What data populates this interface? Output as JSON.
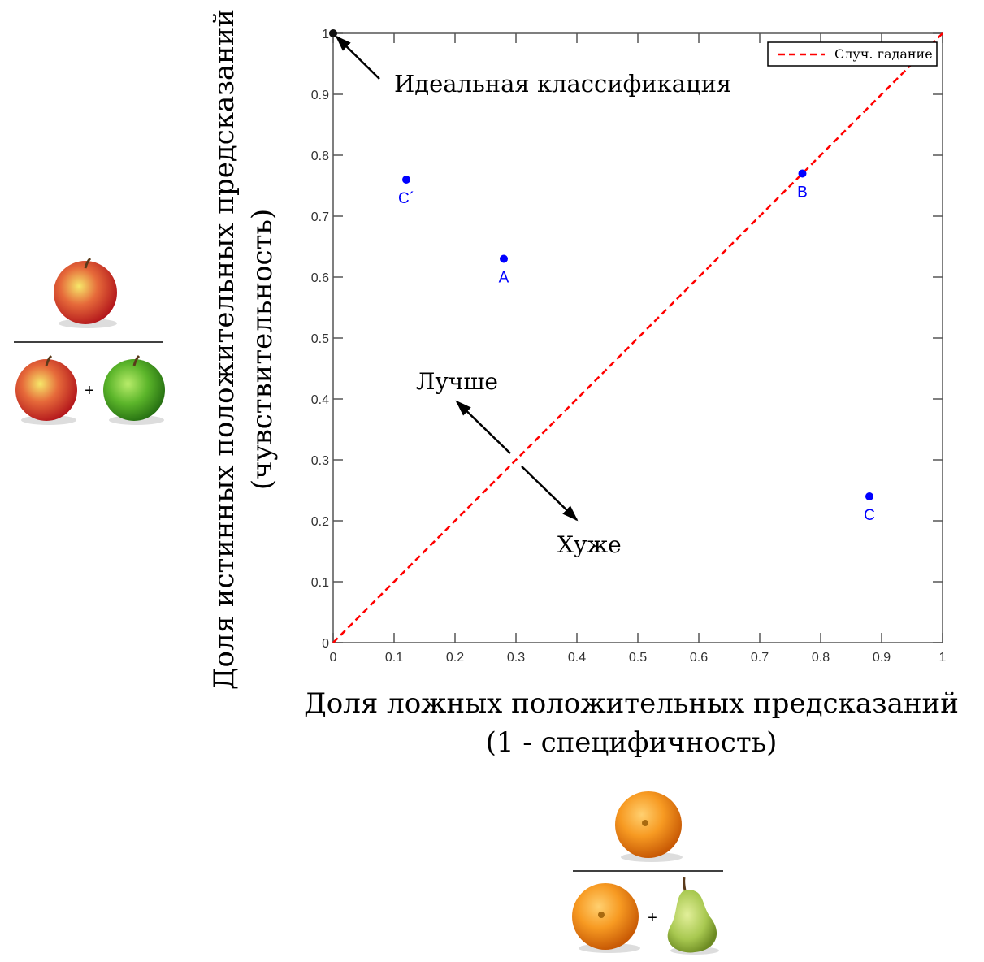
{
  "chart_data": {
    "type": "scatter",
    "title": "",
    "xlabel": [
      "Доля ложных положительных предсказаний",
      "(1 - специфичность)"
    ],
    "ylabel": [
      "Доля истинных положительных предсказаний",
      "(чувствительность)"
    ],
    "xlim": [
      0,
      1
    ],
    "ylim": [
      0,
      1
    ],
    "xticks": [
      "0",
      "0.1",
      "0.2",
      "0.3",
      "0.4",
      "0.5",
      "0.6",
      "0.7",
      "0.8",
      "0.9",
      "1"
    ],
    "yticks": [
      "0",
      "0.1",
      "0.2",
      "0.3",
      "0.4",
      "0.5",
      "0.6",
      "0.7",
      "0.8",
      "0.9",
      "1"
    ],
    "grid": false,
    "points": [
      {
        "label": "C´",
        "x": 0.12,
        "y": 0.76
      },
      {
        "label": "A",
        "x": 0.28,
        "y": 0.63
      },
      {
        "label": "B",
        "x": 0.77,
        "y": 0.77
      },
      {
        "label": "C",
        "x": 0.88,
        "y": 0.24
      }
    ],
    "perfect_point": {
      "x": 0,
      "y": 1
    },
    "series": [
      {
        "name": "Случ. гадание",
        "type": "line",
        "style": "dashed",
        "x": [
          0,
          1
        ],
        "y": [
          0,
          1
        ],
        "color": "#ff0000"
      }
    ],
    "legend": {
      "position": "top-right",
      "entries": [
        "Случ. гадание"
      ]
    },
    "annotations": {
      "perfect": "Идеальная классификация",
      "better": "Лучше",
      "worse": "Хуже"
    },
    "point_color": "#0000ff"
  },
  "side_figures": {
    "plus": "+"
  }
}
